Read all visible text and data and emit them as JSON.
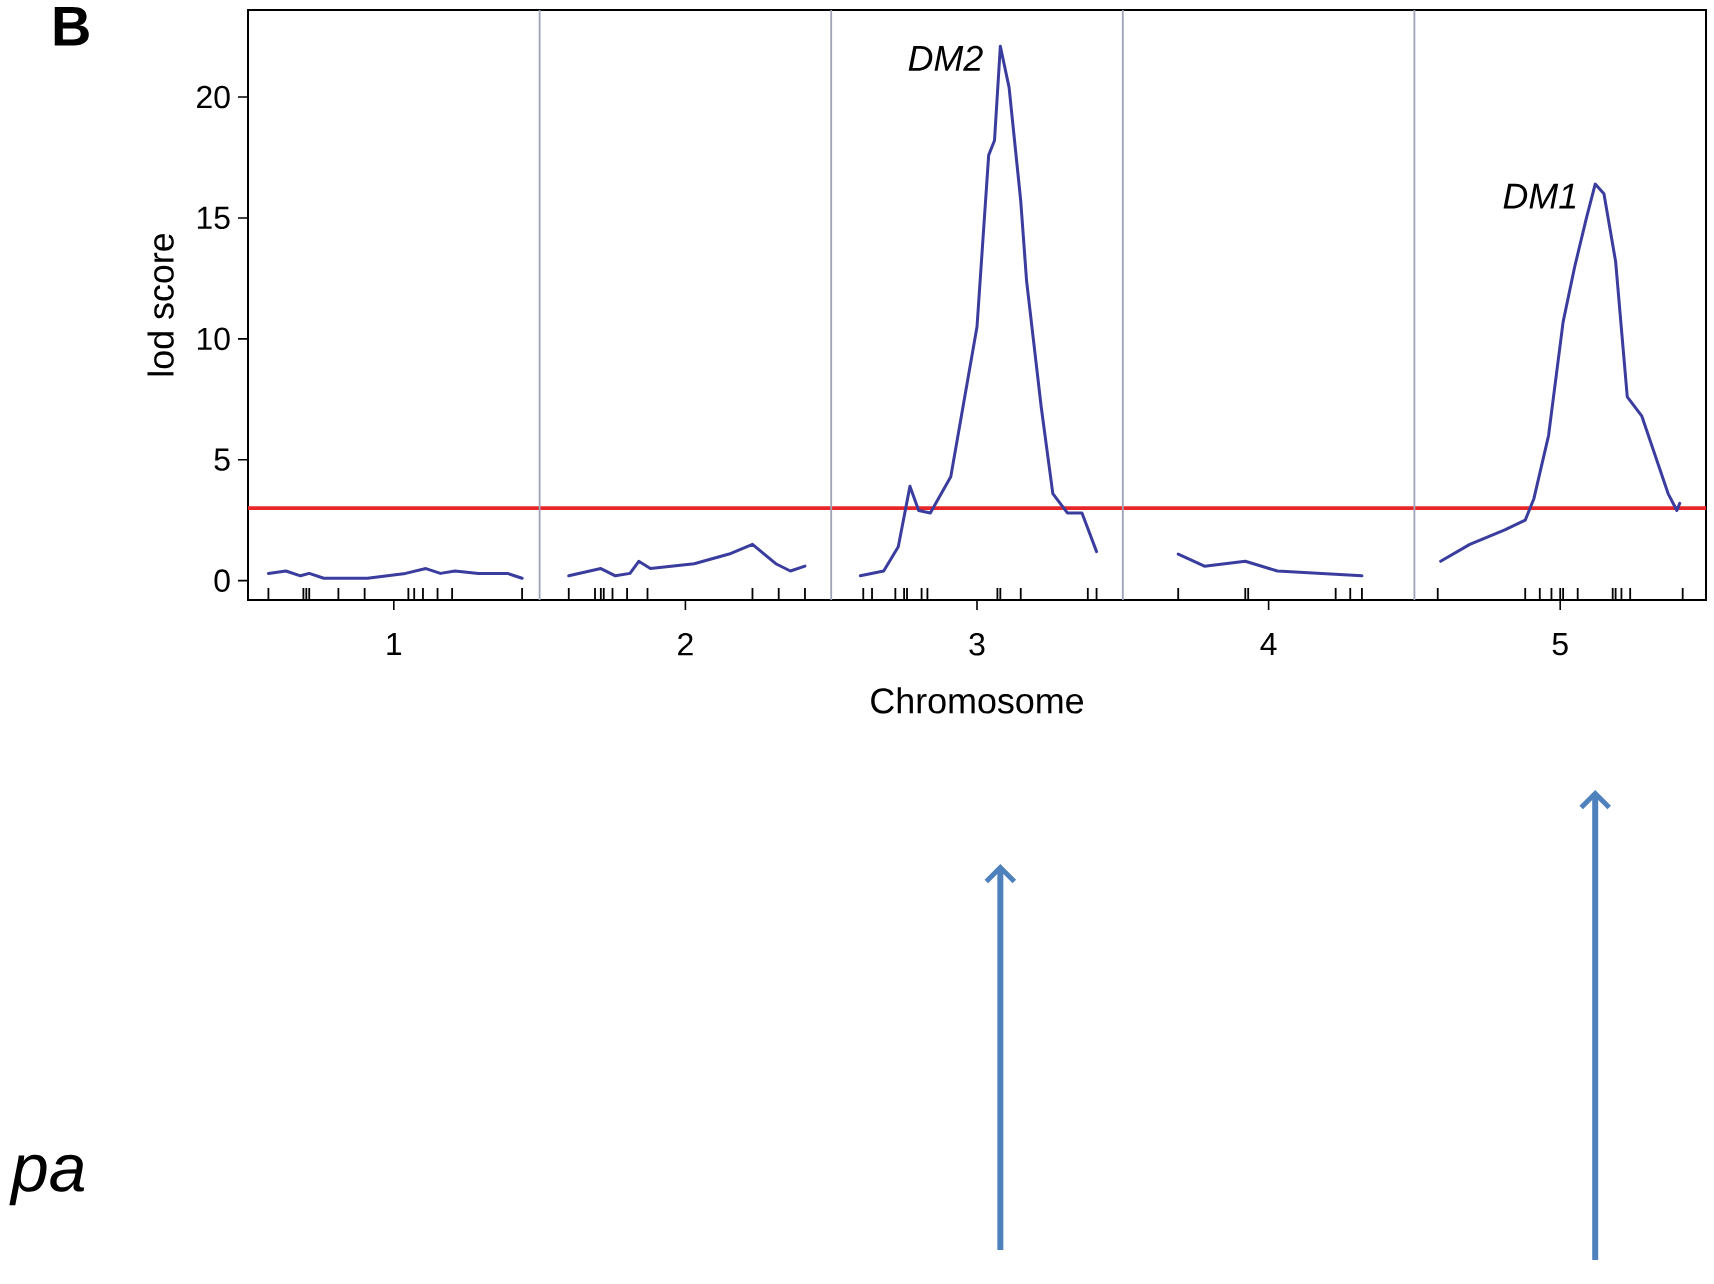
{
  "chart_data": {
    "type": "line",
    "ylabel": "lod score",
    "xlabel": "Chromosome",
    "xlim": [
      0.5,
      5.5
    ],
    "ylim": [
      -0.8,
      23.6
    ],
    "xticks": [
      1,
      2,
      3,
      4,
      5,
      {
        "value": 0.57,
        "label": null
      },
      {
        "value": 0.69,
        "label": null
      },
      {
        "value": 0.7,
        "label": null
      },
      {
        "value": 0.71,
        "label": null
      },
      {
        "value": 0.81,
        "label": null
      },
      {
        "value": 0.9,
        "label": null
      },
      {
        "value": 1.05,
        "label": null
      },
      {
        "value": 1.07,
        "label": null
      },
      {
        "value": 1.1,
        "label": null
      },
      {
        "value": 1.15,
        "label": null
      },
      {
        "value": 1.2,
        "label": null
      },
      {
        "value": 1.44,
        "label": null
      },
      {
        "value": 1.6,
        "label": null
      },
      {
        "value": 1.69,
        "label": null
      },
      {
        "value": 1.71,
        "label": null
      },
      {
        "value": 1.72,
        "label": null
      },
      {
        "value": 1.75,
        "label": null
      },
      {
        "value": 1.8,
        "label": null
      },
      {
        "value": 1.87,
        "label": null
      },
      {
        "value": 2.23,
        "label": null
      },
      {
        "value": 2.32,
        "label": null
      },
      {
        "value": 2.41,
        "label": null
      },
      {
        "value": 2.61,
        "label": null
      },
      {
        "value": 2.64,
        "label": null
      },
      {
        "value": 2.72,
        "label": null
      },
      {
        "value": 2.75,
        "label": null
      },
      {
        "value": 2.76,
        "label": null
      },
      {
        "value": 2.81,
        "label": null
      },
      {
        "value": 2.83,
        "label": null
      },
      {
        "value": 3.07,
        "label": null
      },
      {
        "value": 3.08,
        "label": null
      },
      {
        "value": 3.15,
        "label": null
      },
      {
        "value": 3.38,
        "label": null
      },
      {
        "value": 3.41,
        "label": null
      },
      {
        "value": 3.69,
        "label": null
      },
      {
        "value": 3.92,
        "label": null
      },
      {
        "value": 3.93,
        "label": null
      },
      {
        "value": 4.23,
        "label": null
      },
      {
        "value": 4.28,
        "label": null
      },
      {
        "value": 4.32,
        "label": null
      },
      {
        "value": 4.58,
        "label": null
      },
      {
        "value": 4.88,
        "label": null
      },
      {
        "value": 4.93,
        "label": null
      },
      {
        "value": 4.97,
        "label": null
      },
      {
        "value": 5.0,
        "label": null
      },
      {
        "value": 5.01,
        "label": null
      },
      {
        "value": 5.06,
        "label": null
      },
      {
        "value": 5.18,
        "label": null
      },
      {
        "value": 5.19,
        "label": null
      },
      {
        "value": 5.21,
        "label": null
      },
      {
        "value": 5.24,
        "label": null
      },
      {
        "value": 5.42,
        "label": null
      }
    ],
    "yticks": [
      0,
      5,
      10,
      15,
      20
    ],
    "series": [
      {
        "color": "#3a3d9e",
        "x": [
          0.57,
          0.63,
          0.68,
          0.71,
          0.76,
          0.91,
          1.04,
          1.11,
          1.16,
          1.21,
          1.29,
          1.39,
          1.44,
          1.5,
          1.6,
          1.71,
          1.76,
          1.81,
          1.84,
          1.88,
          2.03,
          2.15,
          2.23,
          2.26,
          2.31,
          2.36,
          2.41,
          2.5,
          2.6,
          2.68,
          2.73,
          2.77,
          2.8,
          2.84,
          2.91,
          3.0,
          3.04,
          3.06,
          3.08,
          3.11,
          3.15,
          3.17,
          3.22,
          3.26,
          3.31,
          3.36,
          3.41,
          3.5,
          3.69,
          3.78,
          3.92,
          4.03,
          4.32,
          4.5,
          4.59,
          4.69,
          4.81,
          4.88,
          4.91,
          4.96,
          5.01,
          5.05,
          5.09,
          5.12,
          5.15,
          5.19,
          5.23,
          5.28,
          5.37,
          5.4,
          5.41
        ],
        "values": [
          0.3,
          0.4,
          0.2,
          0.3,
          0.1,
          0.1,
          0.3,
          0.5,
          0.3,
          0.4,
          0.3,
          0.3,
          0.1,
          null,
          0.2,
          0.5,
          0.2,
          0.3,
          0.8,
          0.5,
          0.7,
          1.1,
          1.5,
          1.2,
          0.7,
          0.4,
          0.6,
          null,
          0.2,
          0.4,
          1.4,
          3.9,
          2.9,
          2.8,
          4.3,
          10.5,
          17.6,
          18.2,
          22.1,
          20.4,
          15.7,
          12.4,
          7.2,
          3.6,
          2.8,
          2.8,
          1.2,
          null,
          1.1,
          0.6,
          0.8,
          0.4,
          0.2,
          null,
          0.8,
          1.5,
          2.1,
          2.5,
          3.4,
          6.0,
          10.7,
          13.0,
          15.0,
          16.4,
          16.0,
          13.2,
          7.6,
          6.8,
          3.6,
          2.9,
          3.2
        ]
      }
    ],
    "ref_lines": [
      {
        "axis": "y",
        "value": 3,
        "color": "#e8262a"
      },
      {
        "axis": "x",
        "value": 1.5,
        "color": "#9fa3b8"
      },
      {
        "axis": "x",
        "value": 2.5,
        "color": "#9fa3b8"
      },
      {
        "axis": "x",
        "value": 3.5,
        "color": "#9fa3b8"
      },
      {
        "axis": "x",
        "value": 4.5,
        "color": "#9fa3b8"
      }
    ],
    "annotations": [
      "B",
      {
        "text": "DM2",
        "x": 3.08,
        "y": 22.1
      },
      {
        "text": "DM1",
        "x": 5.12,
        "y": 16.4
      },
      "pa"
    ]
  }
}
